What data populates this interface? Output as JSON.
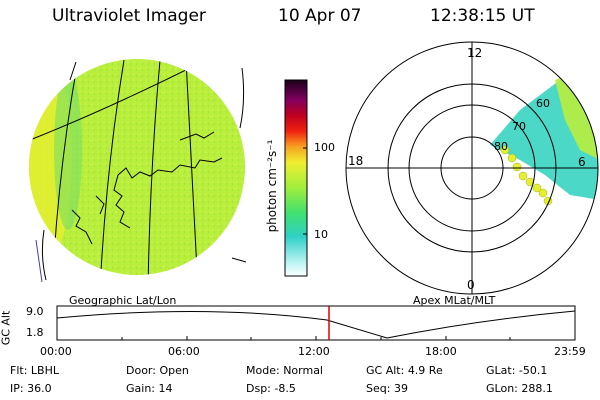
{
  "header": {
    "instrument": "Ultraviolet Imager",
    "date": "10 Apr 07",
    "time": "12:38:15 UT"
  },
  "colorbar": {
    "unit_label": "photon cm⁻²s⁻¹",
    "ticks": [
      "100",
      "10"
    ]
  },
  "polar_plot": {
    "label_top": "12",
    "label_left": "18",
    "label_right": "6",
    "label_bottom": "0",
    "lat_labels": [
      "60",
      "70",
      "80"
    ]
  },
  "projection_labels": {
    "left": "Geographic Lat/Lon",
    "right": "Apex MLat/MLT"
  },
  "altitude_panel": {
    "axis_label": "GC Alt",
    "y_ticks": [
      "9.0",
      "1.8"
    ],
    "time_ticks": [
      "00:00",
      "06:00",
      "12:00",
      "18:00",
      "23:59"
    ],
    "current_marker": "12:38"
  },
  "status": {
    "row1": [
      {
        "key": "Flt:",
        "value": "LBHL"
      },
      {
        "key": "Door:",
        "value": "Open"
      },
      {
        "key": "Mode:",
        "value": "Normal"
      },
      {
        "key": "GC Alt:",
        "value": "4.9 Re"
      },
      {
        "key": "GLat:",
        "value": "-50.1"
      }
    ],
    "row2": [
      {
        "key": "IP:",
        "value": "36.0"
      },
      {
        "key": "Gain:",
        "value": "14"
      },
      {
        "key": "Dsp:",
        "value": "-8.5"
      },
      {
        "key": "Seq:",
        "value": "39"
      },
      {
        "key": "GLon:",
        "value": "288.1"
      }
    ]
  },
  "colors": {
    "disk": "#b8ee3c",
    "aurora": "#38d4c0",
    "marker": "#e00000"
  }
}
